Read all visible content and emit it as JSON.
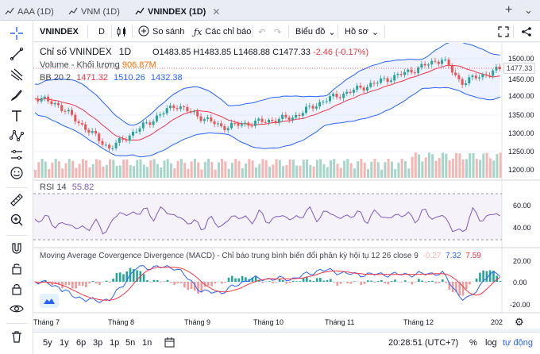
{
  "tabs": [
    {
      "label": "AAA (1D)"
    },
    {
      "label": "VNM (1D)"
    },
    {
      "label": "VNINDEX (1D)"
    }
  ],
  "toolbar": {
    "symbol": "VNINDEX",
    "interval": "D",
    "compare_label": "So sánh",
    "indicators_label": "Các chỉ báo",
    "chart_type_label": "Biểu đồ",
    "profile_label": "Hồ sơ"
  },
  "legend": {
    "title": "Chỉ số VNINDEX",
    "interval": "1D",
    "open": "O1483.85",
    "high": "H1483.85",
    "low": "L1468.88",
    "close": "C1477.33",
    "change": "-2.46 (-0.17%)",
    "volume_label": "Volume - Khối lượng",
    "volume_value": "906.87M",
    "bb_label": "BB 20 2",
    "bb_mid": "1471.32",
    "bb_upper": "1510.26",
    "bb_lower": "1432.38",
    "rsi_label": "RSI 14",
    "rsi_value": "55.82",
    "macd_label": "Moving Average Covergence Divergence (MACD) - Chỉ báo trung bình biến đổi phân kỳ hội tụ 12 26 close 9",
    "macd_hist": "-0.27",
    "macd_line": "7.32",
    "macd_signal": "7.59"
  },
  "price_axis": [
    "1500.00",
    "1450.00",
    "1400.00",
    "1350.00",
    "1300.00",
    "1250.00",
    "1200.00"
  ],
  "current_price": "1477.33",
  "rsi_axis": [
    "60.00",
    "40.00"
  ],
  "macd_axis": [
    "20.00",
    "0.00",
    "-20.00"
  ],
  "time_axis": [
    "Tháng 7",
    "Tháng 8",
    "Tháng 9",
    "Tháng 10",
    "Tháng 11",
    "Tháng 12",
    "202"
  ],
  "bottom": {
    "ranges": [
      "5y",
      "1y",
      "6p",
      "3p",
      "1p",
      "5n",
      "1n"
    ],
    "clock": "20:28:51 (UTC+7)",
    "percent": "%",
    "log": "log",
    "auto": "tự động"
  },
  "colors": {
    "up": "#26a69a",
    "down": "#ef5350",
    "bb_band": "#7e57c2",
    "bb_fill": "#2962ff",
    "rsi_line": "#7e57c2",
    "macd_line": "#2962ff",
    "signal_line": "#f23645"
  }
}
